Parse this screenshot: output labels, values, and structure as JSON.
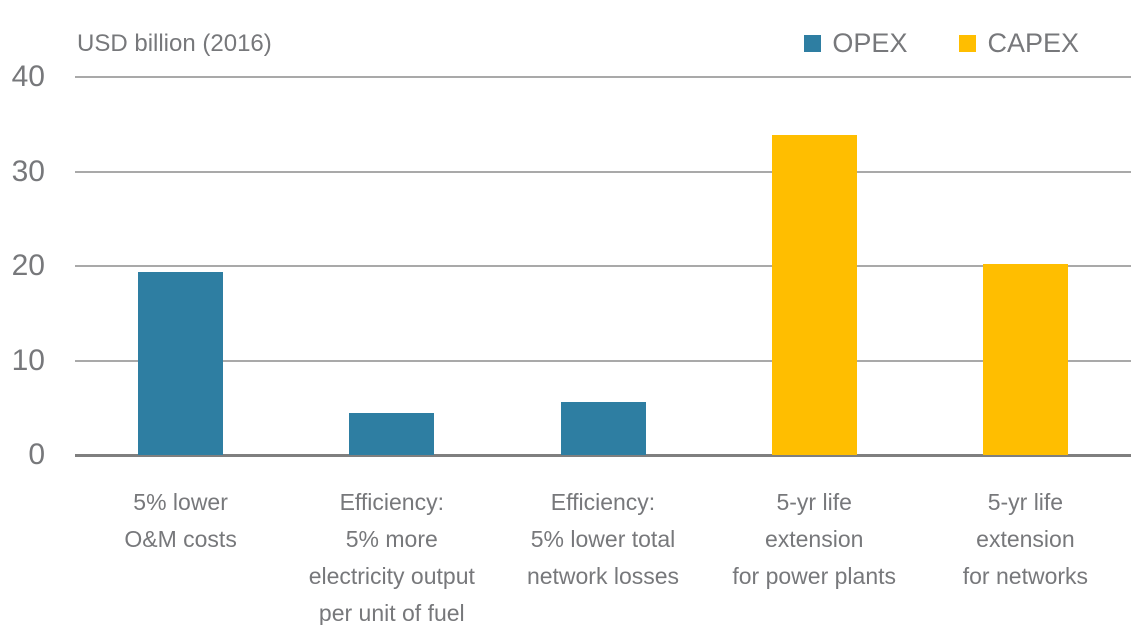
{
  "colors": {
    "opex": "#2e7ea2",
    "capex": "#ffbe00",
    "text": "#77787b",
    "gridline": "#a9a9a9",
    "baseline": "#7f7f7f",
    "background": "#ffffff"
  },
  "chart_data": {
    "type": "bar",
    "title": "USD billion (2016)",
    "xlabel": "",
    "ylabel": "USD billion (2016)",
    "ylim": [
      0,
      40
    ],
    "yticks": [
      0,
      10,
      20,
      30,
      40
    ],
    "grid": "horizontal",
    "legend_position": "top-right",
    "categories": [
      "5% lower\nO&M costs",
      "Efficiency:\n5% more\nelectricity output\nper unit of fuel",
      "Efficiency:\n5% lower total\nnetwork losses",
      "5-yr life\nextension\nfor power plants",
      "5-yr life\nextension\nfor networks"
    ],
    "series": [
      {
        "name": "OPEX",
        "color": "#2e7ea2",
        "values": [
          19.4,
          4.4,
          5.6,
          null,
          null
        ]
      },
      {
        "name": "CAPEX",
        "color": "#ffbe00",
        "values": [
          null,
          null,
          null,
          33.9,
          20.2
        ]
      }
    ]
  }
}
